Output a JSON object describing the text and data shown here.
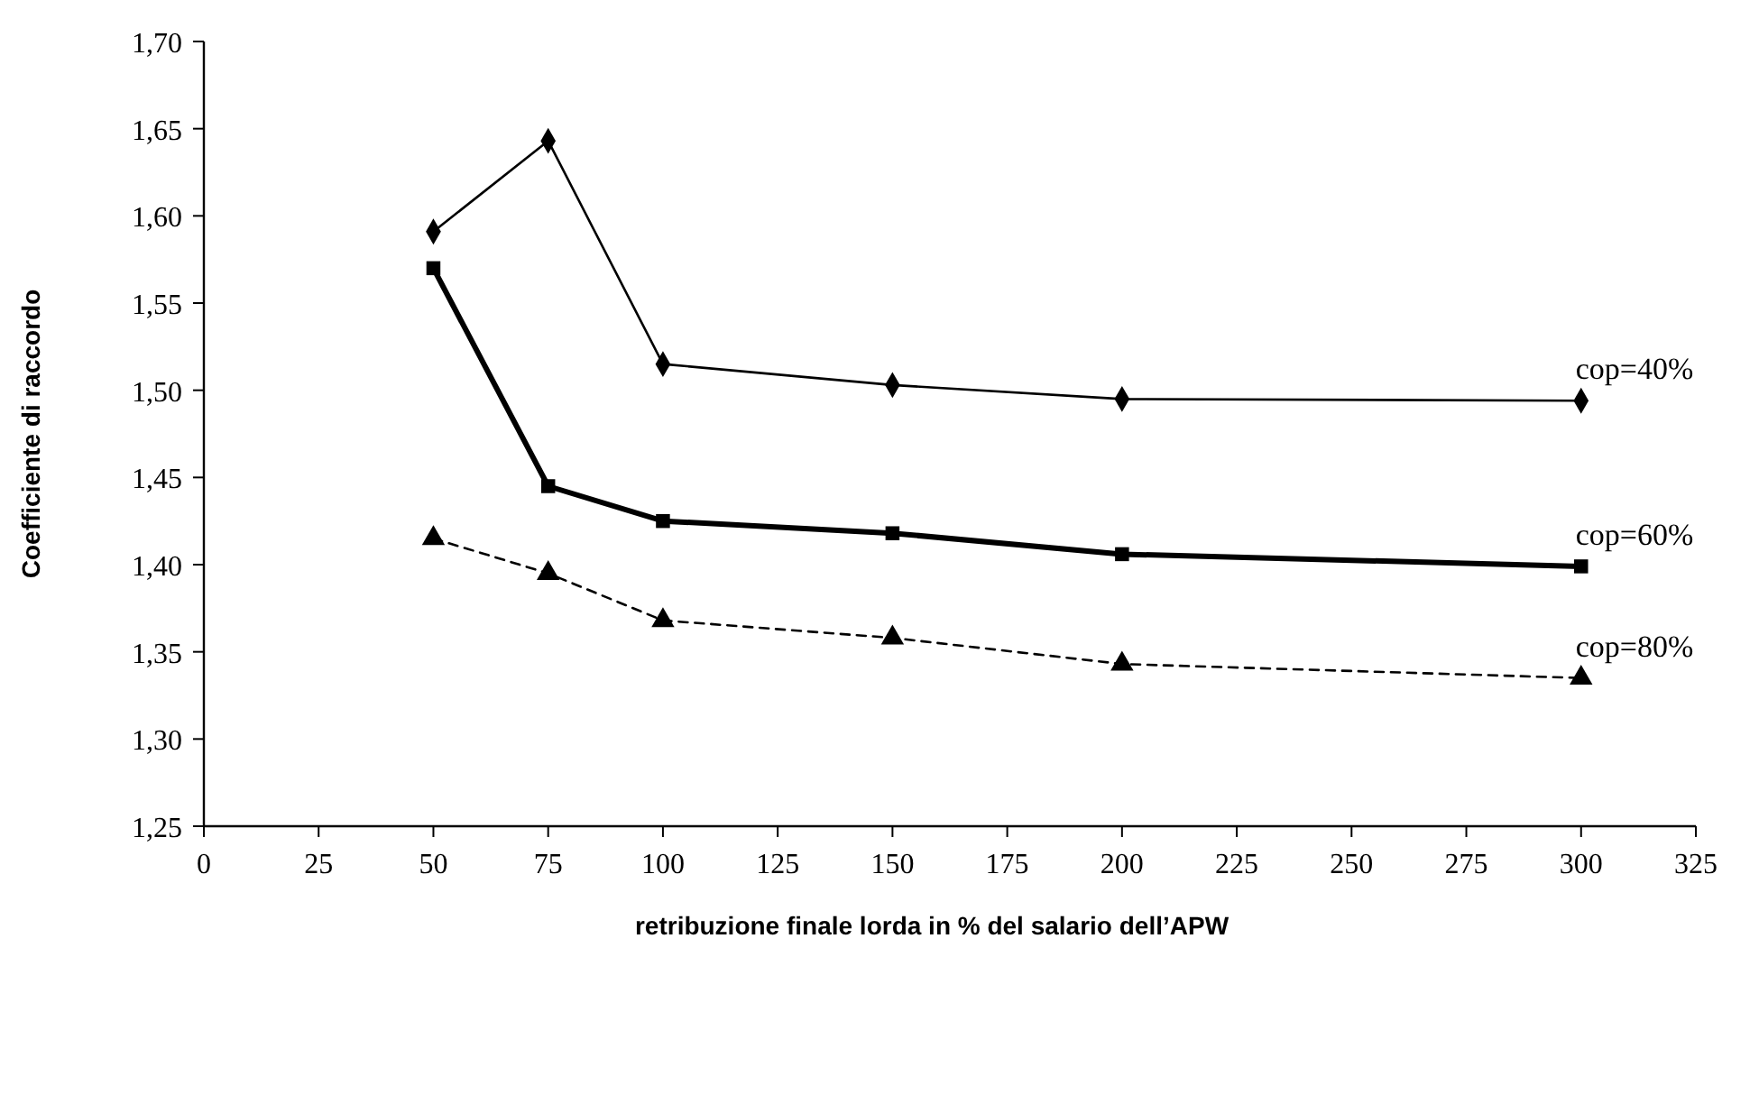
{
  "chart_data": {
    "type": "line",
    "xlabel": "retribuzione finale lorda in % del salario dell’APW",
    "ylabel": "Coefficiente di raccordo",
    "x": [
      50,
      75,
      100,
      150,
      200,
      300
    ],
    "series": [
      {
        "name": "cop=40%",
        "color": "#000000",
        "marker": "diamond",
        "line_style": "solid",
        "values": [
          1.591,
          1.643,
          1.515,
          1.503,
          1.495,
          1.494
        ]
      },
      {
        "name": "cop=60%",
        "color": "#000000",
        "marker": "square",
        "line_style": "solid",
        "values": [
          1.57,
          1.445,
          1.425,
          1.418,
          1.406,
          1.399
        ]
      },
      {
        "name": "cop=80%",
        "color": "#000000",
        "marker": "triangle",
        "line_style": "dashed",
        "values": [
          1.415,
          1.395,
          1.368,
          1.358,
          1.343,
          1.335
        ]
      }
    ],
    "xlim": [
      0,
      325
    ],
    "xticks": [
      {
        "value": 0,
        "label": "0"
      },
      {
        "value": 25,
        "label": "25"
      },
      {
        "value": 50,
        "label": "50"
      },
      {
        "value": 75,
        "label": "75"
      },
      {
        "value": 100,
        "label": "100"
      },
      {
        "value": 125,
        "label": "125"
      },
      {
        "value": 150,
        "label": "150"
      },
      {
        "value": 175,
        "label": "175"
      },
      {
        "value": 200,
        "label": "200"
      },
      {
        "value": 225,
        "label": "225"
      },
      {
        "value": 250,
        "label": "250"
      },
      {
        "value": 275,
        "label": "275"
      },
      {
        "value": 300,
        "label": "300"
      },
      {
        "value": 325,
        "label": "325"
      }
    ],
    "ylim": [
      1.25,
      1.7
    ],
    "yticks": [
      {
        "value": 1.25,
        "label": "1,25"
      },
      {
        "value": 1.3,
        "label": "1,30"
      },
      {
        "value": 1.35,
        "label": "1,35"
      },
      {
        "value": 1.4,
        "label": "1,40"
      },
      {
        "value": 1.45,
        "label": "1,45"
      },
      {
        "value": 1.5,
        "label": "1,50"
      },
      {
        "value": 1.55,
        "label": "1,55"
      },
      {
        "value": 1.6,
        "label": "1,60"
      },
      {
        "value": 1.65,
        "label": "1,65"
      },
      {
        "value": 1.7,
        "label": "1,70"
      }
    ],
    "grid": false
  }
}
